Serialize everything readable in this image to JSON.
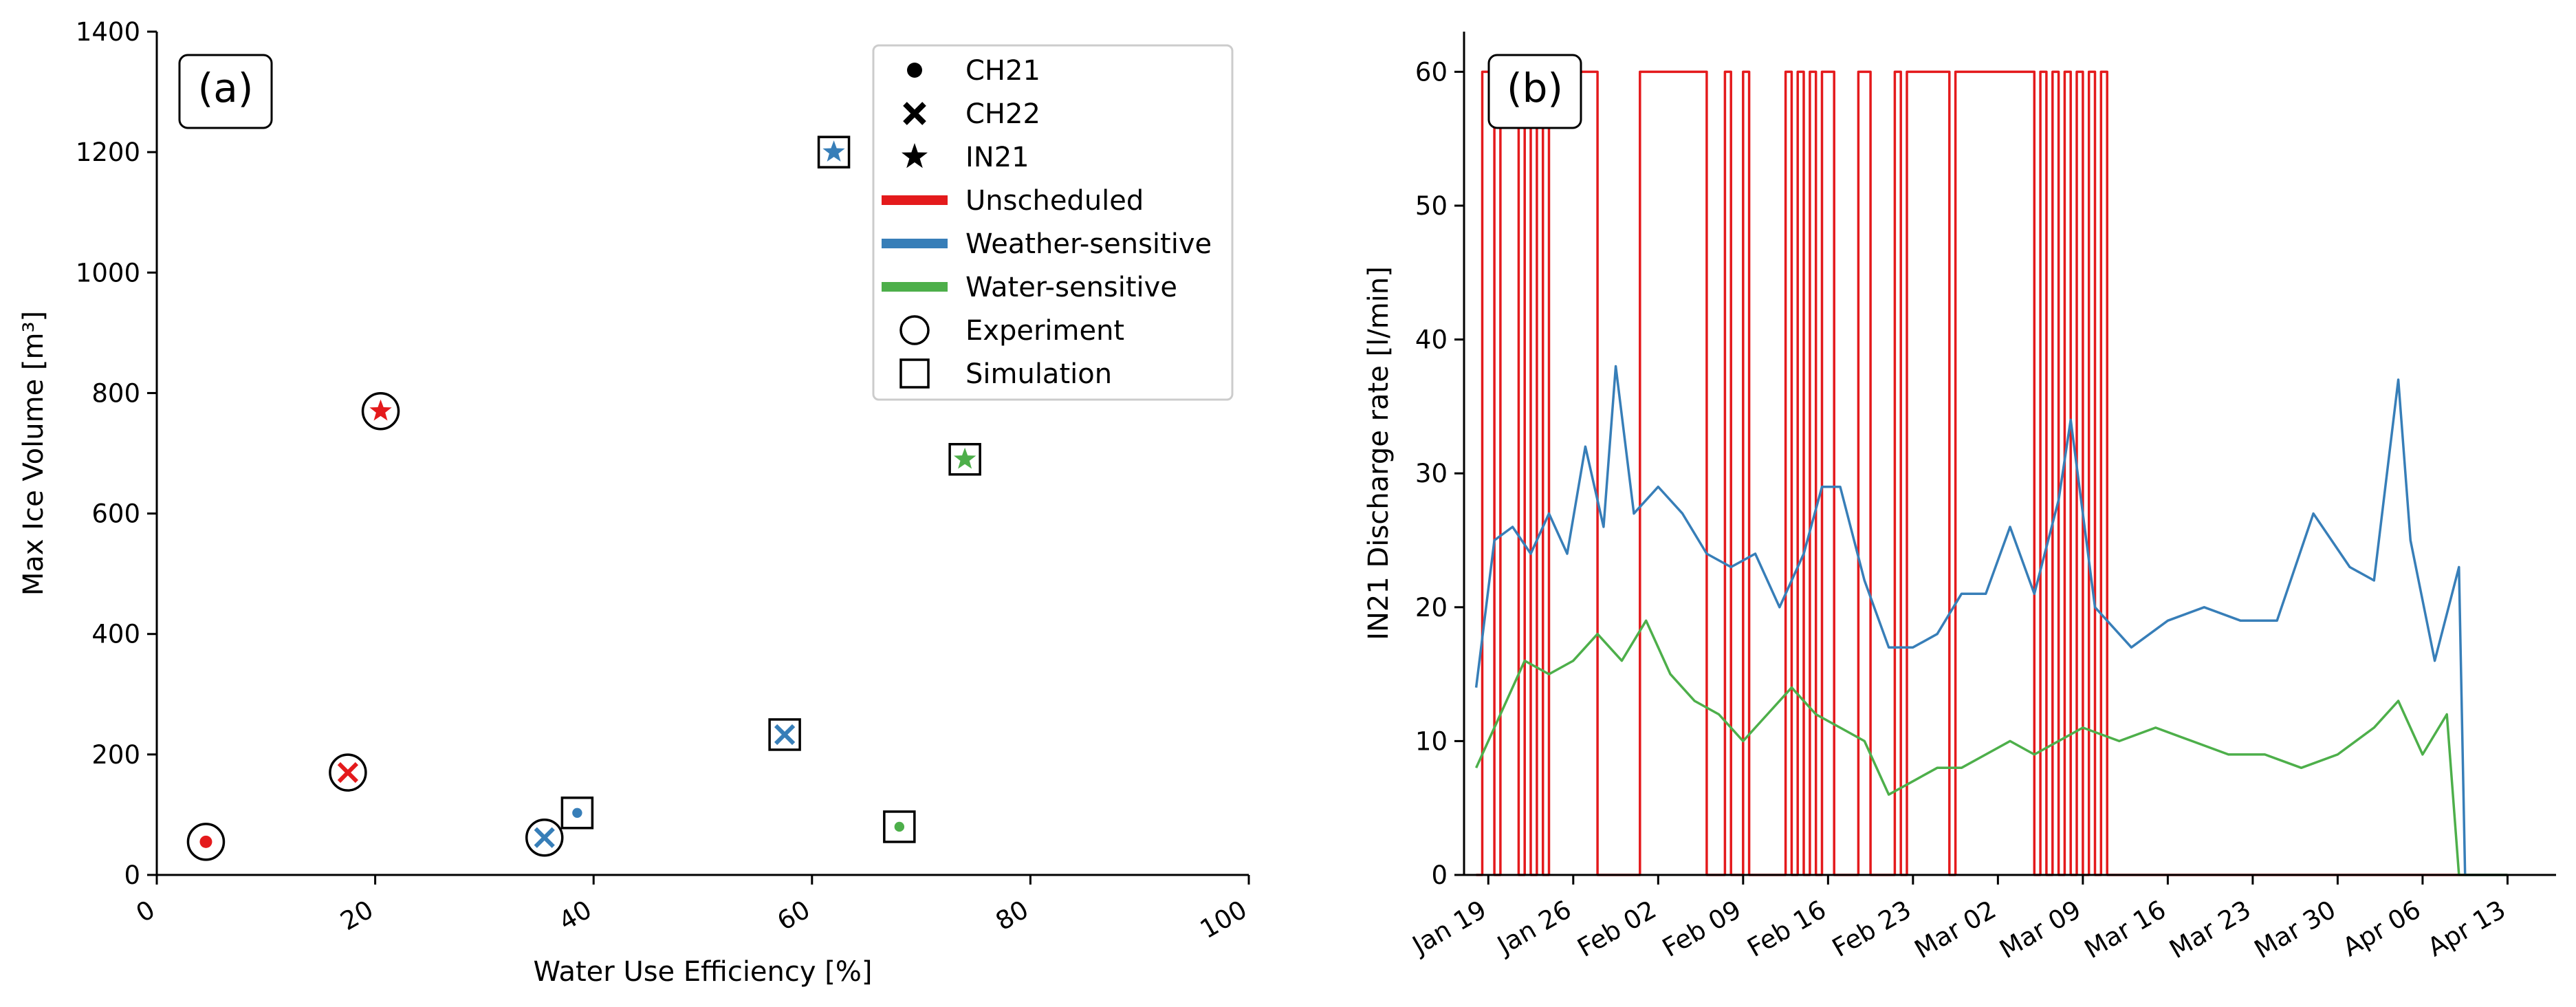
{
  "colors": {
    "unscheduled": "#e41a1c",
    "weather_sensitive": "#377eb8",
    "water_sensitive": "#4daf4a",
    "frame": "#000000"
  },
  "panel_labels": {
    "a": "(a)",
    "b": "(b)"
  },
  "chart_data": [
    {
      "panel": "a",
      "type": "scatter",
      "xlabel": "Water Use Efficiency [%]",
      "ylabel": "Max Ice Volume [m³]",
      "xlim": [
        0,
        100
      ],
      "ylim": [
        0,
        1400
      ],
      "xticks": [
        0,
        20,
        40,
        60,
        80,
        100
      ],
      "yticks": [
        0,
        200,
        400,
        600,
        800,
        1000,
        1200,
        1400
      ],
      "grid": false,
      "legend_position": "top-right",
      "legend": [
        {
          "label": "CH21",
          "kind": "marker",
          "marker": "dot"
        },
        {
          "label": "CH22",
          "kind": "marker",
          "marker": "cross"
        },
        {
          "label": "IN21",
          "kind": "marker",
          "marker": "star"
        },
        {
          "label": "Unscheduled",
          "kind": "line",
          "color": "#e41a1c"
        },
        {
          "label": "Weather-sensitive",
          "kind": "line",
          "color": "#377eb8"
        },
        {
          "label": "Water-sensitive",
          "kind": "line",
          "color": "#4daf4a"
        },
        {
          "label": "Experiment",
          "kind": "marker",
          "marker": "circle"
        },
        {
          "label": "Simulation",
          "kind": "marker",
          "marker": "square"
        }
      ],
      "points": [
        {
          "site": "CH21",
          "strategy": "Unscheduled",
          "source": "Experiment",
          "x": 4.5,
          "y": 55
        },
        {
          "site": "CH22",
          "strategy": "Unscheduled",
          "source": "Experiment",
          "x": 17.5,
          "y": 170
        },
        {
          "site": "IN21",
          "strategy": "Unscheduled",
          "source": "Experiment",
          "x": 20.5,
          "y": 770
        },
        {
          "site": "CH22",
          "strategy": "Weather-sensitive",
          "source": "Experiment",
          "x": 35.5,
          "y": 62
        },
        {
          "site": "CH21",
          "strategy": "Weather-sensitive",
          "source": "Simulation",
          "x": 38.5,
          "y": 103
        },
        {
          "site": "CH22",
          "strategy": "Weather-sensitive",
          "source": "Simulation",
          "x": 57.5,
          "y": 233
        },
        {
          "site": "IN21",
          "strategy": "Weather-sensitive",
          "source": "Simulation",
          "x": 62,
          "y": 1200
        },
        {
          "site": "CH21",
          "strategy": "Water-sensitive",
          "source": "Simulation",
          "x": 68,
          "y": 80
        },
        {
          "site": "IN21",
          "strategy": "Water-sensitive",
          "source": "Simulation",
          "x": 74,
          "y": 690
        }
      ]
    },
    {
      "panel": "b",
      "type": "line",
      "xlabel": "",
      "ylabel": "IN21 Discharge rate [l/min]",
      "ylim": [
        0,
        63
      ],
      "xlim": [
        "2021-01-17",
        "2021-04-17"
      ],
      "yticks": [
        0,
        10,
        20,
        30,
        40,
        50,
        60
      ],
      "xticks": [
        "2021-01-19",
        "2021-01-26",
        "2021-02-02",
        "2021-02-09",
        "2021-02-16",
        "2021-02-23",
        "2021-03-02",
        "2021-03-09",
        "2021-03-16",
        "2021-03-23",
        "2021-03-30",
        "2021-04-06",
        "2021-04-13"
      ],
      "xtick_labels": [
        "Jan 19",
        "Jan 26",
        "Feb 02",
        "Feb 09",
        "Feb 16",
        "Feb 23",
        "Mar 02",
        "Mar 09",
        "Mar 16",
        "Mar 23",
        "Mar 30",
        "Apr 06",
        "Apr 13"
      ],
      "grid": false,
      "series": [
        {
          "strategy": "Unscheduled",
          "style": "step",
          "points": [
            [
              "2021-01-18T00:00",
              0
            ],
            [
              "2021-01-18T12:00",
              60
            ],
            [
              "2021-01-19T12:00",
              0
            ],
            [
              "2021-01-20T00:00",
              60
            ],
            [
              "2021-01-21T12:00",
              0
            ],
            [
              "2021-01-22T00:00",
              60
            ],
            [
              "2021-01-22T12:00",
              0
            ],
            [
              "2021-01-23T00:00",
              60
            ],
            [
              "2021-01-23T12:00",
              0
            ],
            [
              "2021-01-24T00:00",
              60
            ],
            [
              "2021-01-28T00:00",
              0
            ],
            [
              "2021-01-30T00:00",
              0
            ],
            [
              "2021-01-31T12:00",
              60
            ],
            [
              "2021-02-06T00:00",
              0
            ],
            [
              "2021-02-07T00:00",
              0
            ],
            [
              "2021-02-07T12:00",
              60
            ],
            [
              "2021-02-08T00:00",
              0
            ],
            [
              "2021-02-09T00:00",
              60
            ],
            [
              "2021-02-09T12:00",
              0
            ],
            [
              "2021-02-12T00:00",
              0
            ],
            [
              "2021-02-12T12:00",
              60
            ],
            [
              "2021-02-13T00:00",
              0
            ],
            [
              "2021-02-13T12:00",
              60
            ],
            [
              "2021-02-14T00:00",
              0
            ],
            [
              "2021-02-14T12:00",
              60
            ],
            [
              "2021-02-15T00:00",
              0
            ],
            [
              "2021-02-15T12:00",
              60
            ],
            [
              "2021-02-16T12:00",
              0
            ],
            [
              "2021-02-18T00:00",
              0
            ],
            [
              "2021-02-18T12:00",
              60
            ],
            [
              "2021-02-19T12:00",
              0
            ],
            [
              "2021-02-21T00:00",
              0
            ],
            [
              "2021-02-21T12:00",
              60
            ],
            [
              "2021-02-22T00:00",
              0
            ],
            [
              "2021-02-22T12:00",
              60
            ],
            [
              "2021-02-26T00:00",
              0
            ],
            [
              "2021-02-26T12:00",
              60
            ],
            [
              "2021-03-05T00:00",
              0
            ],
            [
              "2021-03-05T12:00",
              60
            ],
            [
              "2021-03-06T00:00",
              0
            ],
            [
              "2021-03-06T12:00",
              60
            ],
            [
              "2021-03-07T00:00",
              0
            ],
            [
              "2021-03-07T12:00",
              60
            ],
            [
              "2021-03-08T00:00",
              0
            ],
            [
              "2021-03-08T12:00",
              60
            ],
            [
              "2021-03-09T00:00",
              0
            ],
            [
              "2021-03-09T12:00",
              60
            ],
            [
              "2021-03-10T00:00",
              0
            ],
            [
              "2021-03-10T12:00",
              60
            ],
            [
              "2021-03-11T00:00",
              0
            ],
            [
              "2021-04-13T00:00",
              0
            ]
          ]
        },
        {
          "strategy": "Weather-sensitive",
          "style": "line",
          "points": [
            [
              "2021-01-18T00:00",
              14
            ],
            [
              "2021-01-19T12:00",
              25
            ],
            [
              "2021-01-21T00:00",
              26
            ],
            [
              "2021-01-22T12:00",
              24
            ],
            [
              "2021-01-24T00:00",
              27
            ],
            [
              "2021-01-25T12:00",
              24
            ],
            [
              "2021-01-27T00:00",
              32
            ],
            [
              "2021-01-28T12:00",
              26
            ],
            [
              "2021-01-29T12:00",
              38
            ],
            [
              "2021-01-31T00:00",
              27
            ],
            [
              "2021-02-02T00:00",
              29
            ],
            [
              "2021-02-04T00:00",
              27
            ],
            [
              "2021-02-06T00:00",
              24
            ],
            [
              "2021-02-08T00:00",
              23
            ],
            [
              "2021-02-10T00:00",
              24
            ],
            [
              "2021-02-12T00:00",
              20
            ],
            [
              "2021-02-14T00:00",
              24
            ],
            [
              "2021-02-15T12:00",
              29
            ],
            [
              "2021-02-17T00:00",
              29
            ],
            [
              "2021-02-19T00:00",
              22
            ],
            [
              "2021-02-21T00:00",
              17
            ],
            [
              "2021-02-23T00:00",
              17
            ],
            [
              "2021-02-25T00:00",
              18
            ],
            [
              "2021-02-27T00:00",
              21
            ],
            [
              "2021-03-01T00:00",
              21
            ],
            [
              "2021-03-03T00:00",
              26
            ],
            [
              "2021-03-05T00:00",
              21
            ],
            [
              "2021-03-07T00:00",
              28
            ],
            [
              "2021-03-08T00:00",
              34
            ],
            [
              "2021-03-10T00:00",
              20
            ],
            [
              "2021-03-13T00:00",
              17
            ],
            [
              "2021-03-16T00:00",
              19
            ],
            [
              "2021-03-19T00:00",
              20
            ],
            [
              "2021-03-22T00:00",
              19
            ],
            [
              "2021-03-25T00:00",
              19
            ],
            [
              "2021-03-28T00:00",
              27
            ],
            [
              "2021-03-31T00:00",
              23
            ],
            [
              "2021-04-02T00:00",
              22
            ],
            [
              "2021-04-04T00:00",
              37
            ],
            [
              "2021-04-05T00:00",
              25
            ],
            [
              "2021-04-07T00:00",
              16
            ],
            [
              "2021-04-09T00:00",
              23
            ],
            [
              "2021-04-09T12:00",
              0
            ],
            [
              "2021-04-13T00:00",
              0
            ]
          ]
        },
        {
          "strategy": "Water-sensitive",
          "style": "line",
          "points": [
            [
              "2021-01-18T00:00",
              8
            ],
            [
              "2021-01-20T00:00",
              12
            ],
            [
              "2021-01-22T00:00",
              16
            ],
            [
              "2021-01-24T00:00",
              15
            ],
            [
              "2021-01-26T00:00",
              16
            ],
            [
              "2021-01-28T00:00",
              18
            ],
            [
              "2021-01-30T00:00",
              16
            ],
            [
              "2021-02-01T00:00",
              19
            ],
            [
              "2021-02-03T00:00",
              15
            ],
            [
              "2021-02-05T00:00",
              13
            ],
            [
              "2021-02-07T00:00",
              12
            ],
            [
              "2021-02-09T00:00",
              10
            ],
            [
              "2021-02-11T00:00",
              12
            ],
            [
              "2021-02-13T00:00",
              14
            ],
            [
              "2021-02-15T00:00",
              12
            ],
            [
              "2021-02-17T00:00",
              11
            ],
            [
              "2021-02-19T00:00",
              10
            ],
            [
              "2021-02-21T00:00",
              6
            ],
            [
              "2021-02-23T00:00",
              7
            ],
            [
              "2021-02-25T00:00",
              8
            ],
            [
              "2021-02-27T00:00",
              8
            ],
            [
              "2021-03-01T00:00",
              9
            ],
            [
              "2021-03-03T00:00",
              10
            ],
            [
              "2021-03-05T00:00",
              9
            ],
            [
              "2021-03-07T00:00",
              10
            ],
            [
              "2021-03-09T00:00",
              11
            ],
            [
              "2021-03-12T00:00",
              10
            ],
            [
              "2021-03-15T00:00",
              11
            ],
            [
              "2021-03-18T00:00",
              10
            ],
            [
              "2021-03-21T00:00",
              9
            ],
            [
              "2021-03-24T00:00",
              9
            ],
            [
              "2021-03-27T00:00",
              8
            ],
            [
              "2021-03-30T00:00",
              9
            ],
            [
              "2021-04-02T00:00",
              11
            ],
            [
              "2021-04-04T00:00",
              13
            ],
            [
              "2021-04-06T00:00",
              9
            ],
            [
              "2021-04-08T00:00",
              12
            ],
            [
              "2021-04-09T00:00",
              0
            ],
            [
              "2021-04-13T00:00",
              0
            ]
          ]
        }
      ]
    }
  ]
}
